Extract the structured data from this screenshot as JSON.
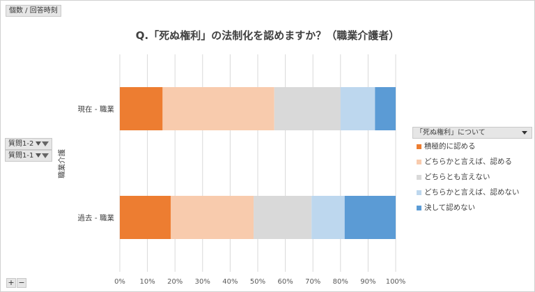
{
  "field_pill": "個数 / 回答時刻",
  "axis_filters": [
    {
      "label": "質問1-2"
    },
    {
      "label": "質問1-1"
    }
  ],
  "chart_data": {
    "type": "bar",
    "orientation": "horizontal",
    "stacked": "percent",
    "title": "Q.「死ぬ権利」の法制化を認めますか？（職業介護者）",
    "ylabel": "職業介護",
    "categories": [
      "現在 - 職業",
      "過去 - 職業"
    ],
    "xlim": [
      0,
      100
    ],
    "x_ticks": [
      "0%",
      "10%",
      "20%",
      "30%",
      "40%",
      "50%",
      "60%",
      "70%",
      "80%",
      "90%",
      "100%"
    ],
    "grid": true,
    "legend_placement": "right",
    "legend_title": "「死ぬ権利」について",
    "series": [
      {
        "name": "積極的に認める",
        "color": "#ed7d31",
        "values": [
          15.5,
          18.5
        ]
      },
      {
        "name": "どちらかと言えば、認める",
        "color": "#f8cbad",
        "values": [
          40.5,
          30.0
        ]
      },
      {
        "name": "どちらとも言えない",
        "color": "#d9d9d9",
        "values": [
          24.0,
          21.0
        ]
      },
      {
        "name": "どちらかと言えば、認めない",
        "color": "#bdd7ee",
        "values": [
          12.5,
          12.0
        ]
      },
      {
        "name": "決して認めない",
        "color": "#5b9bd5",
        "values": [
          7.5,
          18.5
        ]
      }
    ]
  },
  "bottom_buttons": {
    "plus": "+",
    "minus": "−"
  }
}
